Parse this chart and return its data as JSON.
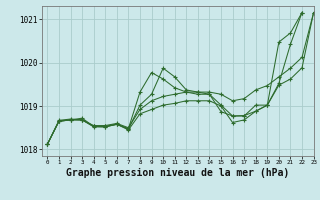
{
  "title": "Graphe pression niveau de la mer (hPa)",
  "background_color": "#cce8ea",
  "grid_color": "#aacccc",
  "line_color": "#2d6b2d",
  "xlim": [
    -0.5,
    23
  ],
  "ylim": [
    1017.85,
    1021.3
  ],
  "yticks": [
    1018,
    1019,
    1020,
    1021
  ],
  "xticks": [
    0,
    1,
    2,
    3,
    4,
    5,
    6,
    7,
    8,
    9,
    10,
    11,
    12,
    13,
    14,
    15,
    16,
    17,
    18,
    19,
    20,
    21,
    22,
    23
  ],
  "lines": [
    [
      1018.12,
      1018.65,
      1018.68,
      1018.68,
      1018.52,
      1018.52,
      1018.58,
      1018.45,
      1018.82,
      1018.92,
      1019.02,
      1019.06,
      1019.12,
      1019.12,
      1019.12,
      1019.0,
      1018.62,
      1018.68,
      1018.88,
      1019.02,
      1019.48,
      1019.62,
      1019.88,
      1021.15
    ],
    [
      1018.12,
      1018.65,
      1018.68,
      1018.68,
      1018.55,
      1018.55,
      1018.6,
      1018.5,
      1018.92,
      1019.12,
      1019.22,
      1019.27,
      1019.32,
      1019.32,
      1019.32,
      1019.27,
      1019.12,
      1019.17,
      1019.37,
      1019.47,
      1019.67,
      1019.87,
      1020.12,
      1021.15
    ],
    [
      1018.12,
      1018.67,
      1018.7,
      1018.68,
      1018.53,
      1018.52,
      1018.58,
      1018.47,
      1019.02,
      1019.27,
      1019.87,
      1019.67,
      1019.37,
      1019.32,
      1019.27,
      1019.02,
      1018.77,
      1018.78,
      1018.88,
      1019.02,
      1020.47,
      1020.68,
      1021.15
    ],
    [
      1018.12,
      1018.65,
      1018.68,
      1018.72,
      1018.53,
      1018.53,
      1018.58,
      1018.48,
      1019.32,
      1019.77,
      1019.62,
      1019.42,
      1019.32,
      1019.27,
      1019.27,
      1018.87,
      1018.77,
      1018.77,
      1019.02,
      1019.02,
      1019.52,
      1020.42,
      1021.15
    ]
  ],
  "xlabel_fontsize": 7,
  "title_fontsize": 7
}
